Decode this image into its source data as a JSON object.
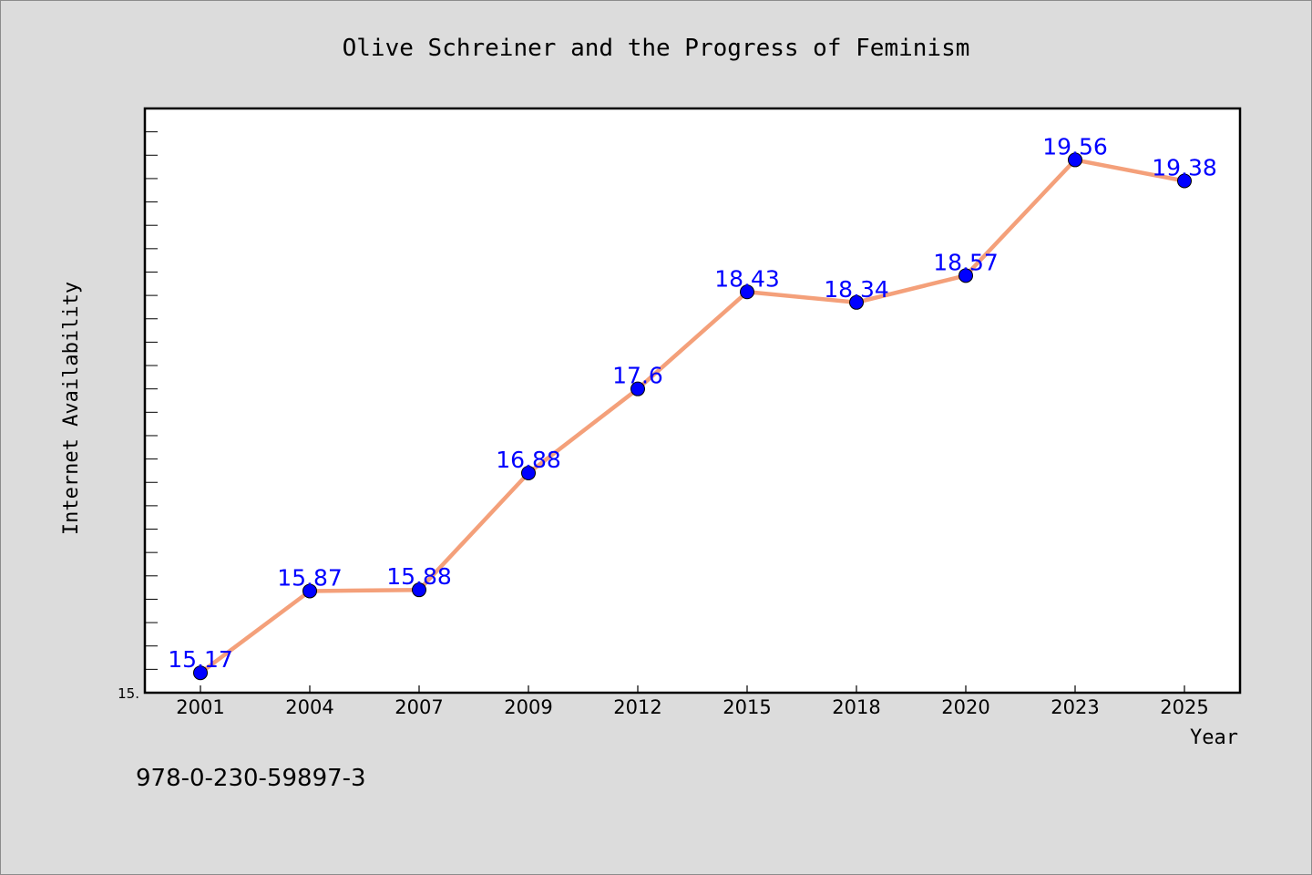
{
  "chart_data": {
    "type": "line",
    "title": "Olive Schreiner and the Progress of Feminism",
    "xlabel": "Year",
    "ylabel": "Internet Availability",
    "categories": [
      "2001",
      "2004",
      "2007",
      "2009",
      "2012",
      "2015",
      "2018",
      "2020",
      "2023",
      "2025"
    ],
    "series": [
      {
        "values": [
          15.17,
          15.87,
          15.88,
          16.88,
          17.6,
          18.43,
          18.34,
          18.57,
          19.56,
          19.38
        ],
        "data_labels": [
          "15.17",
          "15.87",
          "15.88",
          "16.88",
          "17.6",
          "18.43",
          "18.34",
          "18.57",
          "19.56",
          "19.38"
        ],
        "line_color": "#f4a07a",
        "marker_color": "#0000ff"
      }
    ],
    "ylim": [
      15.0,
      20.0
    ],
    "y_tick_labels": [
      "15."
    ],
    "grid": false,
    "legend": "none"
  },
  "footer": {
    "text": "978-0-230-59897-3"
  },
  "colors": {
    "background": "#dcdcdc",
    "plot_background": "#ffffff",
    "line": "#f4a07a",
    "marker": "#0000ff",
    "data_label": "#0000ff"
  }
}
